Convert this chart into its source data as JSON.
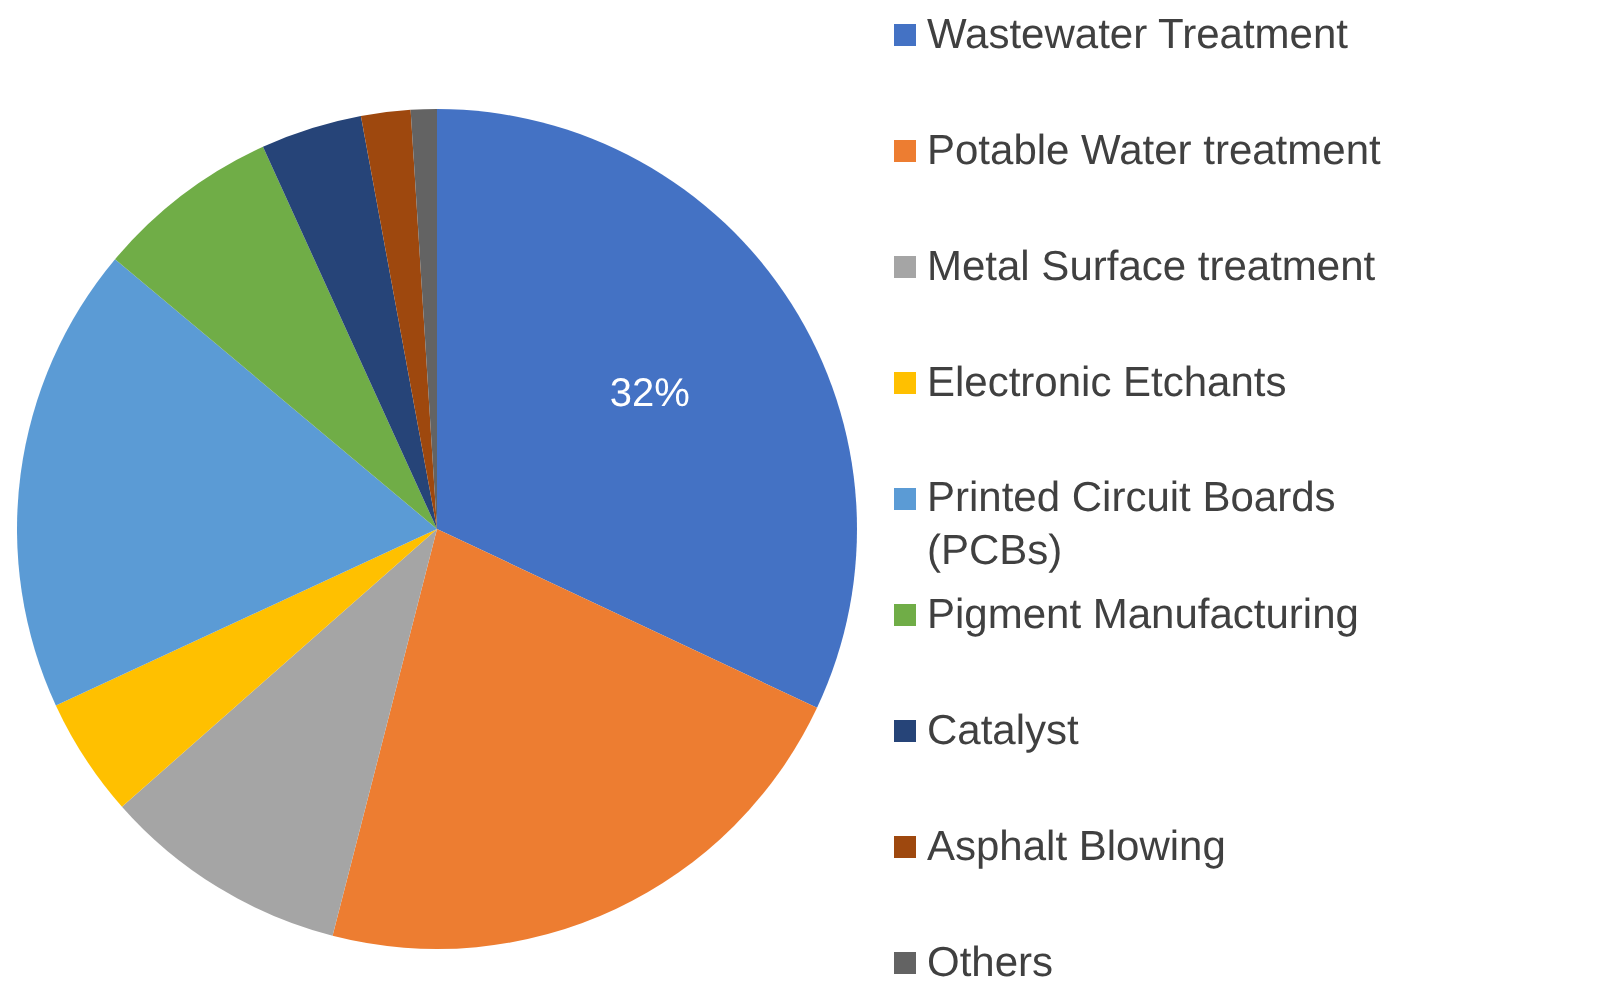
{
  "chart_data": {
    "type": "pie",
    "categories": [
      "Wastewater Treatment",
      "Potable Water treatment",
      "Metal Surface treatment",
      "Electronic Etchants",
      "Printed Circuit Boards (PCBs)",
      "Pigment Manufacturing",
      "Catalyst",
      "Asphalt Blowing",
      "Others"
    ],
    "values": [
      32,
      22,
      9.5,
      4.6,
      18,
      7.1,
      3.9,
      1.9,
      1.0
    ],
    "colors": [
      "#4472c4",
      "#ed7d31",
      "#a5a5a5",
      "#ffc000",
      "#5b9bd5",
      "#70ad47",
      "#264478",
      "#9e480e",
      "#636363"
    ],
    "value_labels": [
      "32%",
      null,
      null,
      null,
      null,
      null,
      null,
      null,
      null
    ],
    "legend": "right"
  }
}
